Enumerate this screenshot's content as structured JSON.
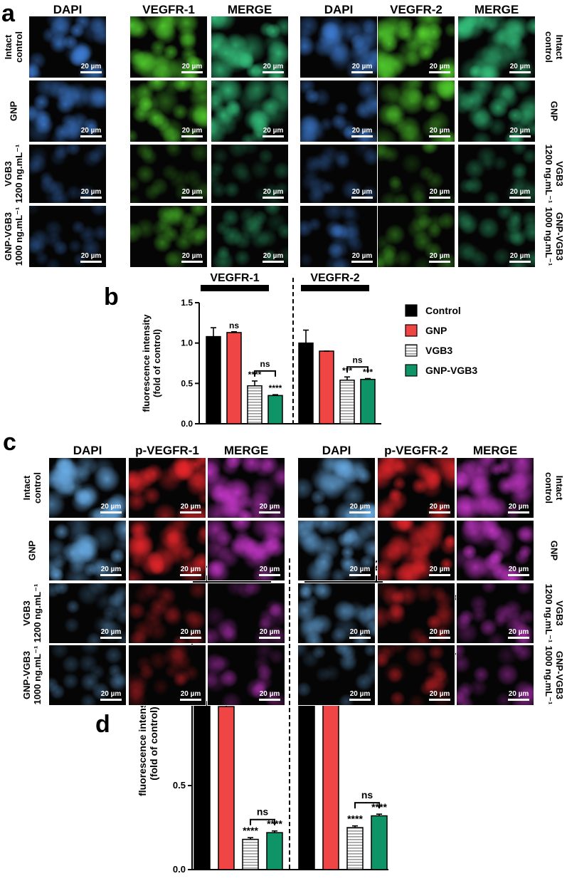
{
  "panels": {
    "a": "a",
    "b": "b",
    "c": "c",
    "d": "d"
  },
  "panel_a": {
    "left_headers": [
      "DAPI",
      "VEGFR-1",
      "MERGE"
    ],
    "right_headers": [
      "DAPI",
      "VEGFR-2",
      "MERGE"
    ],
    "row_labels": [
      [
        "Intact",
        "control"
      ],
      [
        "GNP",
        ""
      ],
      [
        "VGB3",
        "1200 ng.mL⁻¹"
      ],
      [
        "GNP-VGB3",
        "1000 ng.mL⁻¹"
      ]
    ],
    "scale_label": "20 µm",
    "colors": {
      "dapi": "#3f7fd8",
      "vegfr": "#52d12e",
      "merge": "#34c07c"
    },
    "intensity": {
      "left": [
        [
          0.85,
          1.0,
          1.0
        ],
        [
          0.9,
          0.95,
          0.95
        ],
        [
          0.45,
          0.4,
          0.4
        ],
        [
          0.45,
          0.6,
          0.55
        ]
      ],
      "right": [
        [
          0.9,
          1.0,
          1.0
        ],
        [
          0.8,
          0.85,
          0.85
        ],
        [
          0.45,
          0.45,
          0.45
        ],
        [
          0.5,
          0.55,
          0.55
        ]
      ]
    }
  },
  "panel_c": {
    "left_headers": [
      "DAPI",
      "p-VEGFR-1",
      "MERGE"
    ],
    "right_headers": [
      "DAPI",
      "p-VEGFR-2",
      "MERGE"
    ],
    "row_labels": [
      [
        "Intact",
        "control"
      ],
      [
        "GNP",
        ""
      ],
      [
        "VGB3",
        "1200 ng.mL⁻¹"
      ],
      [
        "GNP-VGB3",
        "1000 ng.mL⁻¹"
      ]
    ],
    "scale_label": "20 µm",
    "colors": {
      "dapi": "#6aaee8",
      "pvegfr": "#e8262b",
      "merge": "#d43ad8"
    },
    "intensity": {
      "left": [
        [
          0.9,
          0.95,
          0.95
        ],
        [
          0.85,
          0.9,
          0.85
        ],
        [
          0.5,
          0.5,
          0.5
        ],
        [
          0.45,
          0.45,
          0.5
        ]
      ],
      "right": [
        [
          0.9,
          0.95,
          0.95
        ],
        [
          0.8,
          0.9,
          0.85
        ],
        [
          0.7,
          0.6,
          0.55
        ],
        [
          0.45,
          0.5,
          0.5
        ]
      ]
    }
  },
  "chart_data": [
    {
      "type": "bar",
      "panel": "b",
      "groups": [
        "VEGFR-1",
        "VEGFR-2"
      ],
      "ylabel": "fluorescence intensity\n(fold of control)",
      "ylim": [
        0,
        1.5
      ],
      "yticks": [
        "0.0",
        "0.5",
        "1.0",
        "1.5"
      ],
      "series": [
        {
          "name": "Control",
          "values": [
            1.08,
            1.0
          ],
          "errors": [
            0.11,
            0.16
          ],
          "color": "#000000",
          "pattern": "solid"
        },
        {
          "name": "GNP",
          "values": [
            1.13,
            0.9
          ],
          "errors": [
            0.01,
            0.0
          ],
          "color": "#f04545",
          "pattern": "solid"
        },
        {
          "name": "VGB3",
          "values": [
            0.47,
            0.54
          ],
          "errors": [
            0.06,
            0.04
          ],
          "color": "#d8d8d8",
          "pattern": "hstripe"
        },
        {
          "name": "GNP-VGB3",
          "values": [
            0.35,
            0.55
          ],
          "errors": [
            0.01,
            0.01
          ],
          "color": "#0e9466",
          "pattern": "solid"
        }
      ],
      "annotations": [
        [
          "",
          "ns",
          "****",
          "****"
        ],
        [
          "",
          "",
          "***",
          "***"
        ]
      ],
      "bracket_label": "ns",
      "legend_position": "right"
    },
    {
      "type": "bar",
      "panel": "d",
      "groups": [
        "p-VEGFR-1",
        "p-VEGFR-2"
      ],
      "ylabel": "fluorescence intensity\n(fold of control)",
      "ylim": [
        0,
        1.5
      ],
      "yticks": [
        "0.0",
        "0.5",
        "1.0",
        "1.5"
      ],
      "series": [
        {
          "name": "Control",
          "values": [
            1.0,
            1.2
          ],
          "errors": [
            0.16,
            0.1
          ],
          "color": "#000000",
          "pattern": "solid"
        },
        {
          "name": "GNP",
          "values": [
            0.97,
            1.05
          ],
          "errors": [
            0.01,
            0.01
          ],
          "color": "#f04545",
          "pattern": "solid"
        },
        {
          "name": "VGB3",
          "values": [
            0.18,
            0.25
          ],
          "errors": [
            0.01,
            0.01
          ],
          "color": "#d8d8d8",
          "pattern": "hstripe"
        },
        {
          "name": "GNP-VGB3",
          "values": [
            0.22,
            0.32
          ],
          "errors": [
            0.01,
            0.01
          ],
          "color": "#0e9466",
          "pattern": "solid"
        }
      ],
      "annotations": [
        [
          "",
          "ns",
          "****",
          "****"
        ],
        [
          "",
          "ns",
          "****",
          "****"
        ]
      ],
      "bracket_label": "ns",
      "legend_position": "right"
    }
  ]
}
